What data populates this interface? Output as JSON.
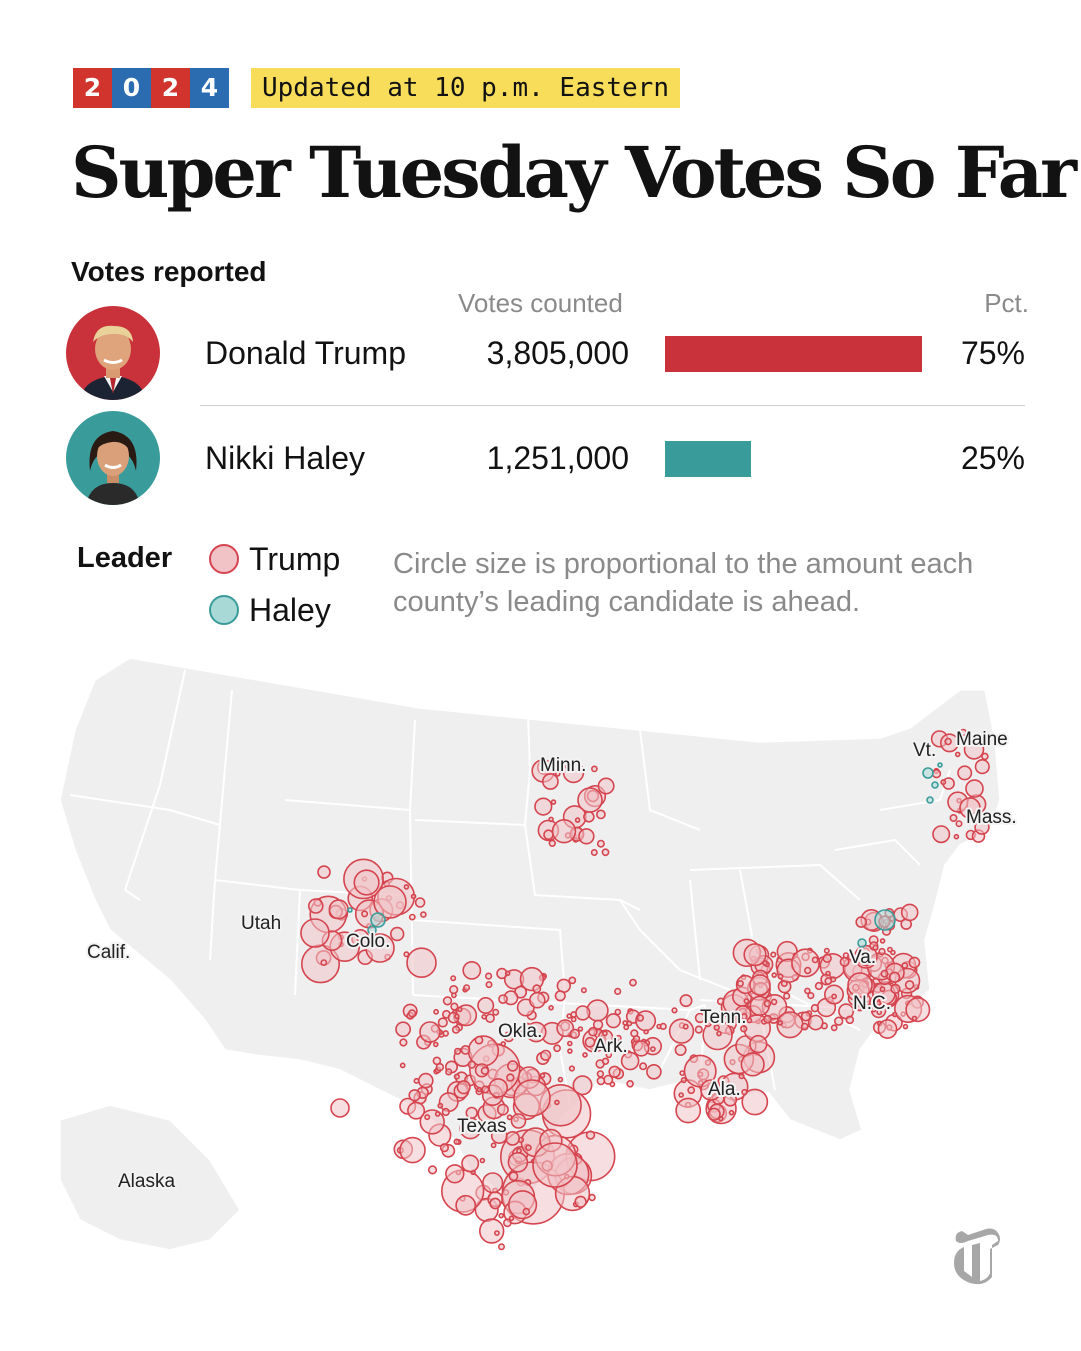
{
  "header": {
    "year_digits": [
      {
        "digit": "2",
        "color": "#d0342c"
      },
      {
        "digit": "0",
        "color": "#2b6cb0"
      },
      {
        "digit": "2",
        "color": "#d0342c"
      },
      {
        "digit": "4",
        "color": "#2b6cb0"
      }
    ],
    "update_text": "Updated at 10 p.m. Eastern",
    "title": "Super Tuesday Votes So Far"
  },
  "results": {
    "section_label": "Votes reported",
    "col_votes": "Votes counted",
    "col_pct": "Pct.",
    "candidates": [
      {
        "name": "Donald Trump",
        "votes": "3,805,000",
        "pct_label": "75%",
        "pct": 75,
        "color": "#c9323a",
        "portrait": "trump-portrait"
      },
      {
        "name": "Nikki Haley",
        "votes": "1,251,000",
        "pct_label": "25%",
        "pct": 25,
        "color": "#3a9c9a",
        "portrait": "haley-portrait"
      }
    ]
  },
  "legend": {
    "title": "Leader",
    "items": [
      {
        "label": "Trump",
        "fill": "#f1c2c6",
        "stroke": "#d5454f"
      },
      {
        "label": "Haley",
        "fill": "#a8d9d7",
        "stroke": "#3a9c9a"
      }
    ],
    "note": "Circle size is proportional to the amount each county’s leading candidate is ahead."
  },
  "map": {
    "state_labels": [
      "Calif.",
      "Utah",
      "Colo.",
      "Minn.",
      "Vt.",
      "Maine",
      "Mass.",
      "Va.",
      "N.C.",
      "Tenn.",
      "Okla.",
      "Ark.",
      "Ala.",
      "Texas",
      "Alaska"
    ]
  },
  "logo": "nyt-logo"
}
